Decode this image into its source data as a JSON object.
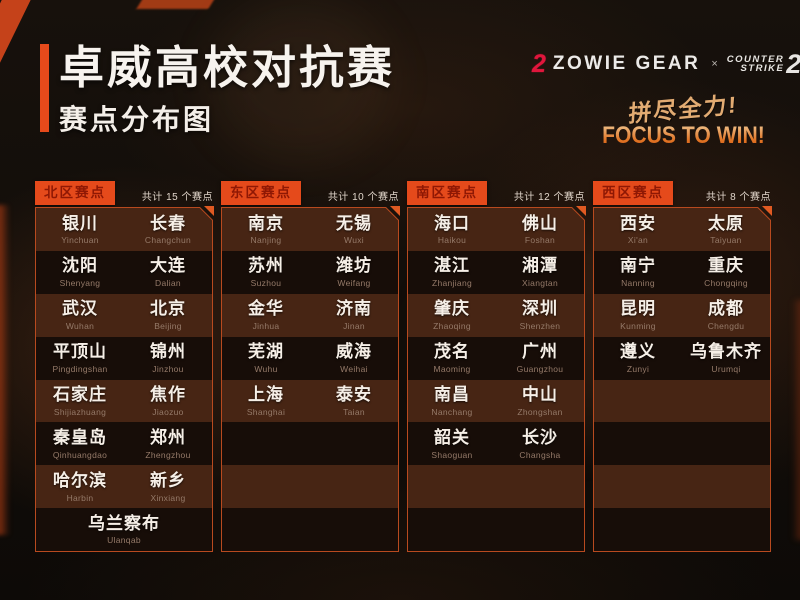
{
  "page": {
    "title": "卓威高校对抗赛",
    "subtitle": "赛点分布图"
  },
  "brand": {
    "zowie_icon": "2",
    "zowie_name": "ZOWIE GEAR",
    "cross": "×",
    "cs_line1": "COUNTER",
    "cs_line2": "STRIKE",
    "cs_num": "2",
    "slogan_zh": "拼尽全力!",
    "slogan_en": "FOCUS TO WIN!"
  },
  "colors": {
    "accent_orange": "#e54a1b",
    "tab_text": "#8f1804",
    "panel_border": "#b84a1f",
    "zowie_red": "#e0163c",
    "pinyin_gray": "#957a69"
  },
  "regions": [
    {
      "name": "北区赛点",
      "count": "共计 15 个赛点",
      "rows": [
        [
          {
            "zh": "银川",
            "py": "Yinchuan"
          },
          {
            "zh": "长春",
            "py": "Changchun"
          }
        ],
        [
          {
            "zh": "沈阳",
            "py": "Shenyang"
          },
          {
            "zh": "大连",
            "py": "Dalian"
          }
        ],
        [
          {
            "zh": "武汉",
            "py": "Wuhan"
          },
          {
            "zh": "北京",
            "py": "Beijing"
          }
        ],
        [
          {
            "zh": "平顶山",
            "py": "Pingdingshan"
          },
          {
            "zh": "锦州",
            "py": "Jinzhou"
          }
        ],
        [
          {
            "zh": "石家庄",
            "py": "Shijiazhuang"
          },
          {
            "zh": "焦作",
            "py": "Jiaozuo"
          }
        ],
        [
          {
            "zh": "秦皇岛",
            "py": "Qinhuangdao"
          },
          {
            "zh": "郑州",
            "py": "Zhengzhou"
          }
        ],
        [
          {
            "zh": "哈尔滨",
            "py": "Harbin"
          },
          {
            "zh": "新乡",
            "py": "Xinxiang"
          }
        ],
        [
          {
            "zh": "乌兰察布",
            "py": "Ulanqab"
          }
        ]
      ]
    },
    {
      "name": "东区赛点",
      "count": "共计 10 个赛点",
      "rows": [
        [
          {
            "zh": "南京",
            "py": "Nanjing"
          },
          {
            "zh": "无锡",
            "py": "Wuxi"
          }
        ],
        [
          {
            "zh": "苏州",
            "py": "Suzhou"
          },
          {
            "zh": "潍坊",
            "py": "Weifang"
          }
        ],
        [
          {
            "zh": "金华",
            "py": "Jinhua"
          },
          {
            "zh": "济南",
            "py": "Jinan"
          }
        ],
        [
          {
            "zh": "芜湖",
            "py": "Wuhu"
          },
          {
            "zh": "威海",
            "py": "Weihai"
          }
        ],
        [
          {
            "zh": "上海",
            "py": "Shanghai"
          },
          {
            "zh": "泰安",
            "py": "Taian"
          }
        ]
      ]
    },
    {
      "name": "南区赛点",
      "count": "共计 12 个赛点",
      "rows": [
        [
          {
            "zh": "海口",
            "py": "Haikou"
          },
          {
            "zh": "佛山",
            "py": "Foshan"
          }
        ],
        [
          {
            "zh": "湛江",
            "py": "Zhanjiang"
          },
          {
            "zh": "湘潭",
            "py": "Xiangtan"
          }
        ],
        [
          {
            "zh": "肇庆",
            "py": "Zhaoqing"
          },
          {
            "zh": "深圳",
            "py": "Shenzhen"
          }
        ],
        [
          {
            "zh": "茂名",
            "py": "Maoming"
          },
          {
            "zh": "广州",
            "py": "Guangzhou"
          }
        ],
        [
          {
            "zh": "南昌",
            "py": "Nanchang"
          },
          {
            "zh": "中山",
            "py": "Zhongshan"
          }
        ],
        [
          {
            "zh": "韶关",
            "py": "Shaoguan"
          },
          {
            "zh": "长沙",
            "py": "Changsha"
          }
        ]
      ]
    },
    {
      "name": "西区赛点",
      "count": "共计 8 个赛点",
      "rows": [
        [
          {
            "zh": "西安",
            "py": "Xi'an"
          },
          {
            "zh": "太原",
            "py": "Taiyuan"
          }
        ],
        [
          {
            "zh": "南宁",
            "py": "Nanning"
          },
          {
            "zh": "重庆",
            "py": "Chongqing"
          }
        ],
        [
          {
            "zh": "昆明",
            "py": "Kunming"
          },
          {
            "zh": "成都",
            "py": "Chengdu"
          }
        ],
        [
          {
            "zh": "遵义",
            "py": "Zunyi"
          },
          {
            "zh": "乌鲁木齐",
            "py": "Urumqi"
          }
        ]
      ]
    }
  ]
}
